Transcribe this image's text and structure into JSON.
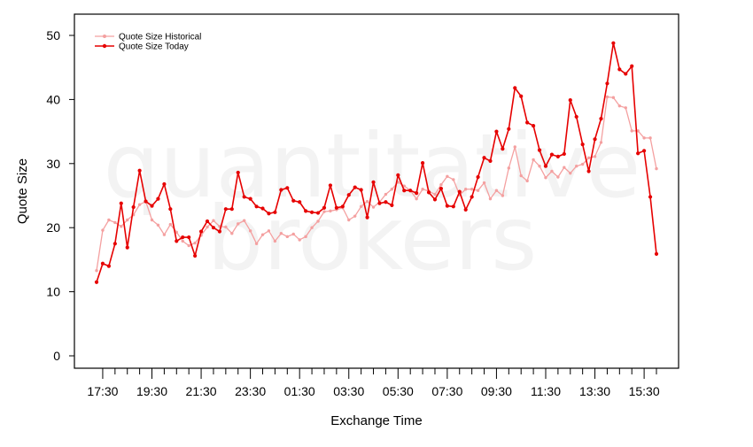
{
  "watermark": {
    "line1": "quantitative",
    "line2": "brokers"
  },
  "chart_data": {
    "type": "line",
    "xlabel": "Exchange Time",
    "ylabel": "Quote Size",
    "ylim": [
      0,
      50
    ],
    "yticks": [
      0,
      10,
      20,
      30,
      40,
      50
    ],
    "xlim": [
      -1,
      90.5
    ],
    "xticks": [
      {
        "x": 1,
        "label": "17:30"
      },
      {
        "x": 9,
        "label": "19:30"
      },
      {
        "x": 17,
        "label": "21:30"
      },
      {
        "x": 25,
        "label": "23:30"
      },
      {
        "x": 33,
        "label": "01:30"
      },
      {
        "x": 41,
        "label": "03:30"
      },
      {
        "x": 49,
        "label": "05:30"
      },
      {
        "x": 57,
        "label": "07:30"
      },
      {
        "x": 65,
        "label": "09:30"
      },
      {
        "x": 73,
        "label": "11:30"
      },
      {
        "x": 81,
        "label": "13:30"
      },
      {
        "x": 89,
        "label": "15:30"
      }
    ],
    "minor_ticks_every": 1,
    "legend_position": "top-left",
    "grid": false,
    "series": [
      {
        "name": "Quote Size Historical",
        "color": "#f4a0a0",
        "values": [
          13.3,
          19.6,
          21.2,
          20.8,
          20.2,
          21.2,
          22.0,
          23.6,
          24.1,
          21.2,
          20.4,
          18.9,
          20.5,
          19.3,
          17.9,
          17.2,
          17.6,
          18.8,
          20.1,
          21.1,
          20.2,
          20.1,
          19.1,
          20.6,
          21.1,
          19.5,
          17.5,
          18.9,
          19.5,
          17.9,
          19.1,
          18.6,
          19.0,
          18.1,
          18.6,
          20.0,
          21.0,
          22.5,
          22.6,
          22.8,
          23.1,
          21.2,
          21.8,
          23.3,
          24.1,
          23.2,
          24.0,
          25.2,
          26.0,
          27.1,
          26.5,
          25.8,
          24.5,
          26.0,
          25.7,
          25.2,
          26.7,
          28.0,
          27.5,
          25.1,
          26.0,
          26.0,
          25.8,
          27.0,
          24.5,
          25.8,
          25.0,
          29.3,
          32.6,
          28.1,
          27.3,
          30.6,
          29.6,
          27.8,
          28.8,
          27.9,
          29.4,
          28.5,
          29.6,
          29.9,
          30.9,
          31.1,
          33.3,
          40.4,
          40.3,
          39.0,
          38.7,
          35.1,
          35.1,
          34.0,
          34.0,
          29.2
        ]
      },
      {
        "name": "Quote Size Today",
        "color": "#e60000",
        "values": [
          11.5,
          14.4,
          14.0,
          17.5,
          23.8,
          16.9,
          23.2,
          28.9,
          24.1,
          23.4,
          24.5,
          26.8,
          22.9,
          17.9,
          18.5,
          18.5,
          15.6,
          19.4,
          21.0,
          20.0,
          19.4,
          22.9,
          22.9,
          28.6,
          24.8,
          24.5,
          23.3,
          23.0,
          22.2,
          22.4,
          25.9,
          26.2,
          24.2,
          24.0,
          22.6,
          22.4,
          22.3,
          23.1,
          26.6,
          23.1,
          23.3,
          25.1,
          26.3,
          25.9,
          21.6,
          27.1,
          23.8,
          24.0,
          23.5,
          28.2,
          25.8,
          25.8,
          25.4,
          30.1,
          25.5,
          24.4,
          26.1,
          23.4,
          23.3,
          25.6,
          22.8,
          24.8,
          27.9,
          30.9,
          30.4,
          35.0,
          32.3,
          35.4,
          41.8,
          40.5,
          36.4,
          35.9,
          32.1,
          29.6,
          31.4,
          31.1,
          31.5,
          39.9,
          37.3,
          33.0,
          28.8,
          33.8,
          37.0,
          42.5,
          48.8,
          44.7,
          44.0,
          45.2,
          31.6,
          32.0,
          24.8,
          15.9
        ]
      }
    ]
  }
}
